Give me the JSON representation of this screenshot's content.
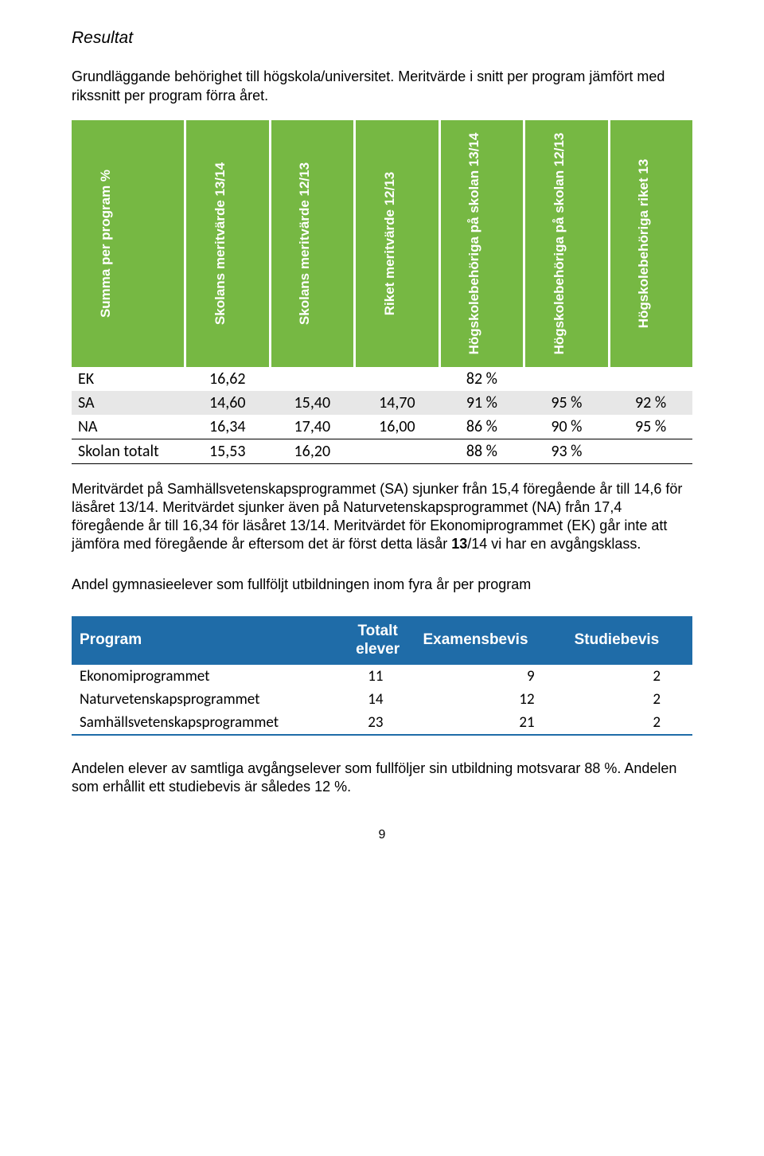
{
  "heading": "Resultat",
  "intro": "Grundläggande behörighet till högskola/universitet. Meritvärde i snitt per program jämfört med rikssnitt per program förra året.",
  "green_table": {
    "type": "table",
    "header_bg": "#76b843",
    "header_fg": "#ffffff",
    "shade_bg": "#e7e7e7",
    "body_font": "Calibri",
    "body_fontsize": 20,
    "header_fontsize": 17,
    "columns": [
      "Summa per program %",
      "Skolans meritvärde 13/14",
      "Skolans meritvärde 12/13",
      "Riket meritvärde 12/13",
      "Högskolebehöriga på skolan 13/14",
      "Högskolebehöriga på skolan 12/13",
      "Högskolebehöriga riket 13"
    ],
    "rows": [
      {
        "label": "EK",
        "v1": "16,62",
        "v2": "",
        "v3": "",
        "v4": "82 %",
        "v5": "",
        "v6": ""
      },
      {
        "label": "SA",
        "v1": "14,60",
        "v2": "15,40",
        "v3": "14,70",
        "v4": "91 %",
        "v5": "95 %",
        "v6": "92 %"
      },
      {
        "label": "NA",
        "v1": "16,34",
        "v2": "17,40",
        "v3": "16,00",
        "v4": "86 %",
        "v5": "90 %",
        "v6": "95 %"
      },
      {
        "label": "Skolan totalt",
        "v1": "15,53",
        "v2": "16,20",
        "v3": "",
        "v4": "88 %",
        "v5": "93 %",
        "v6": ""
      }
    ]
  },
  "para1_a": "Meritvärdet på Samhällsvetenskapsprogrammet (SA) sjunker från 15,4 föregående år till 14,6 för läsåret 13/14. Meritvärdet sjunker även på Naturvetenskapsprogrammet (NA) från 17,4 föregående år till 16,34 för läsåret 13/14. Meritvärdet för Ekonomiprogrammet (EK) går inte att jämföra med föregående år eftersom det är först detta läsår ",
  "para1_b": "13",
  "para1_c": "/14 vi har en avgångsklass.",
  "para2": "Andel gymnasieelever som fullföljt utbildningen inom fyra år per program",
  "blue_table": {
    "type": "table",
    "header_bg": "#1f6ca8",
    "header_fg": "#ffffff",
    "border_color": "#1f6ca8",
    "columns": {
      "c0": "Program",
      "c1_line1": "Totalt",
      "c1_line2": "elever",
      "c2": "Examensbevis",
      "c3": "Studiebevis"
    },
    "rows": [
      {
        "p": "Ekonomiprogrammet",
        "tot": "11",
        "ex": "9",
        "st": "2"
      },
      {
        "p": "Naturvetenskapsprogrammet",
        "tot": "14",
        "ex": "12",
        "st": "2"
      },
      {
        "p": "Samhällsvetenskapsprogrammet",
        "tot": "23",
        "ex": "21",
        "st": "2"
      }
    ]
  },
  "para3": "Andelen elever av samtliga avgångselever som fullföljer sin utbildning motsvarar 88 %. Andelen som erhållit ett studiebevis är således 12 %.",
  "page_number": "9"
}
